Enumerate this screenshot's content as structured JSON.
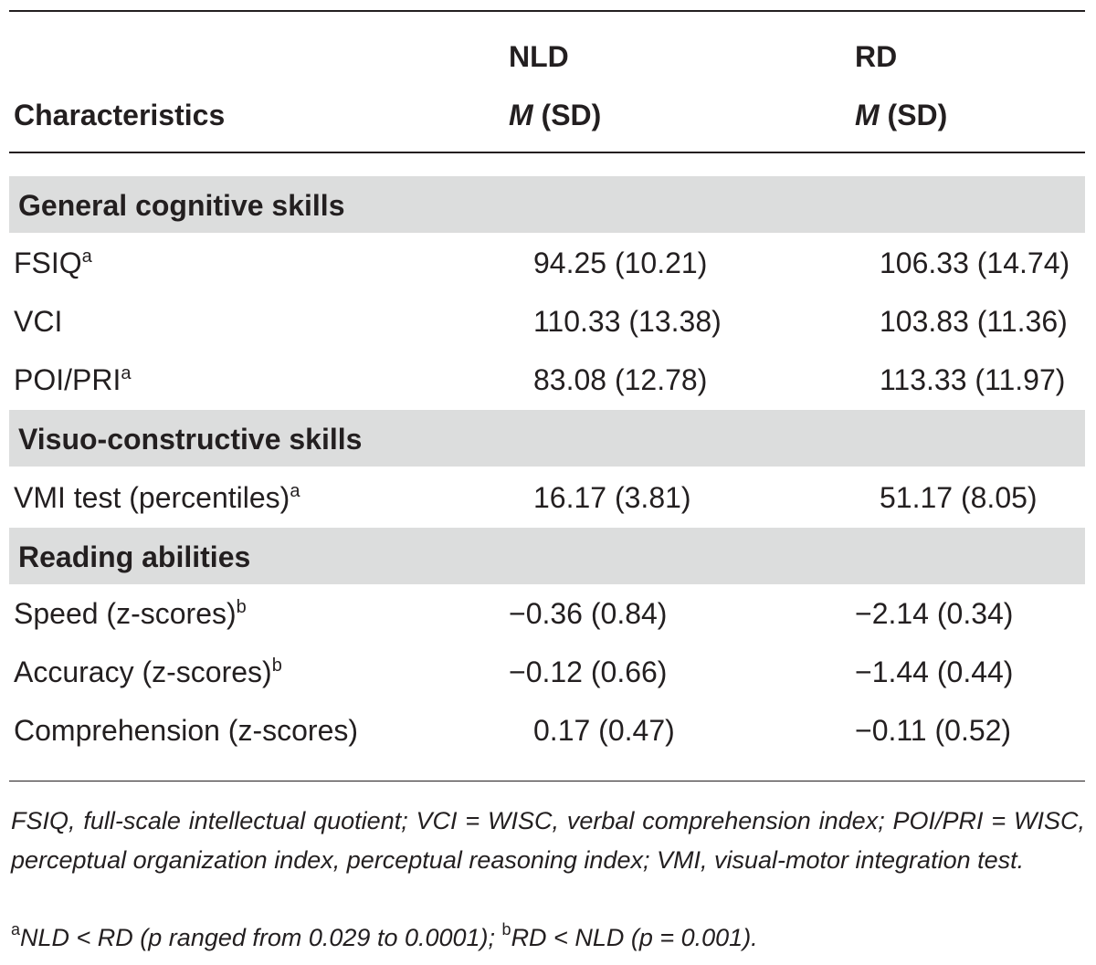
{
  "header": {
    "characteristics": "Characteristics",
    "group1": "NLD",
    "group2": "RD",
    "stat_m": "M",
    "stat_sd": " (SD)"
  },
  "sections": [
    {
      "title": "General cognitive skills",
      "rows": [
        {
          "label": "FSIQ",
          "sup": "a",
          "nld": "94.25 (10.21)",
          "rd": "106.33 (14.74)"
        },
        {
          "label": "VCI",
          "sup": "",
          "nld": "110.33 (13.38)",
          "rd": "103.83 (11.36)"
        },
        {
          "label": "POI/PRI",
          "sup": "a",
          "nld": "83.08 (12.78)",
          "rd": "113.33 (11.97)"
        }
      ]
    },
    {
      "title": "Visuo-constructive skills",
      "rows": [
        {
          "label": "VMI test (percentiles)",
          "sup": "a",
          "nld": "16.17 (3.81)",
          "rd": "51.17 (8.05)"
        }
      ]
    },
    {
      "title": "Reading abilities",
      "rows": [
        {
          "label": "Speed (z-scores)",
          "sup": "b",
          "nld": "−0.36 (0.84)",
          "rd": "−2.14 (0.34)"
        },
        {
          "label": "Accuracy (z-scores)",
          "sup": "b",
          "nld": "−0.12 (0.66)",
          "rd": "−1.44 (0.44)"
        },
        {
          "label": "Comprehension (z-scores)",
          "sup": "",
          "nld": "0.17 (0.47)",
          "rd": "−0.11 (0.52)"
        }
      ]
    }
  ],
  "footnote": {
    "abbreviations": "FSIQ, full-scale intellectual quotient; VCI = WISC, verbal comprehension index; POI/PRI = WISC, perceptual organization index, perceptual reasoning index; VMI, visual-motor integration test.",
    "note_a_marker": "a",
    "note_a_text": "NLD < RD (p ranged from 0.029 to 0.0001); ",
    "note_b_marker": "b",
    "note_b_text": "RD < NLD (p = 0.001)."
  }
}
